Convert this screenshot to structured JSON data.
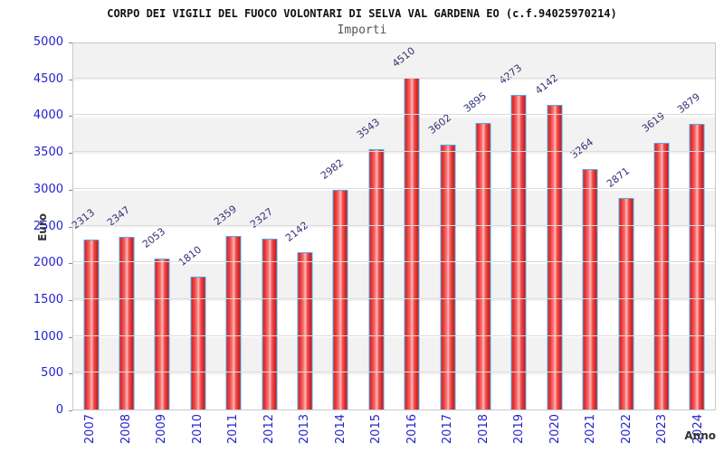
{
  "header": {
    "title": "CORPO DEI VIGILI DEL FUOCO VOLONTARI DI SELVA VAL GARDENA EO (c.f.94025970214)",
    "subtitle": "Importi"
  },
  "chart_data": {
    "type": "bar",
    "title": "CORPO DEI VIGILI DEL FUOCO VOLONTARI DI SELVA VAL GARDENA EO (c.f.94025970214)",
    "subtitle": "Importi",
    "xlabel": "Anno",
    "ylabel": "Euro",
    "categories": [
      "2007",
      "2008",
      "2009",
      "2010",
      "2011",
      "2012",
      "2013",
      "2014",
      "2015",
      "2016",
      "2017",
      "2018",
      "2019",
      "2020",
      "2021",
      "2022",
      "2023",
      "2024"
    ],
    "values": [
      2313,
      2347,
      2053,
      1810,
      2359,
      2327,
      2142,
      2982,
      3543,
      4510,
      3602,
      3895,
      4273,
      4142,
      3264,
      2871,
      3619,
      3879
    ],
    "ylim": [
      0,
      5000
    ],
    "y_ticks": [
      0,
      500,
      1000,
      1500,
      2000,
      2500,
      3000,
      3500,
      4000,
      4500,
      5000
    ],
    "grid": "horizontal-bands",
    "legend": "none",
    "colors": {
      "bar_fill": "#ee3b3b",
      "bar_highlight": "#ffbaba",
      "bar_border": "#56a9ea",
      "axis_tick_label": "#2323cc",
      "value_label": "#333375",
      "band_gray": "#f2f2f2",
      "title_color": "#111111",
      "subtitle_color": "#555555"
    }
  }
}
